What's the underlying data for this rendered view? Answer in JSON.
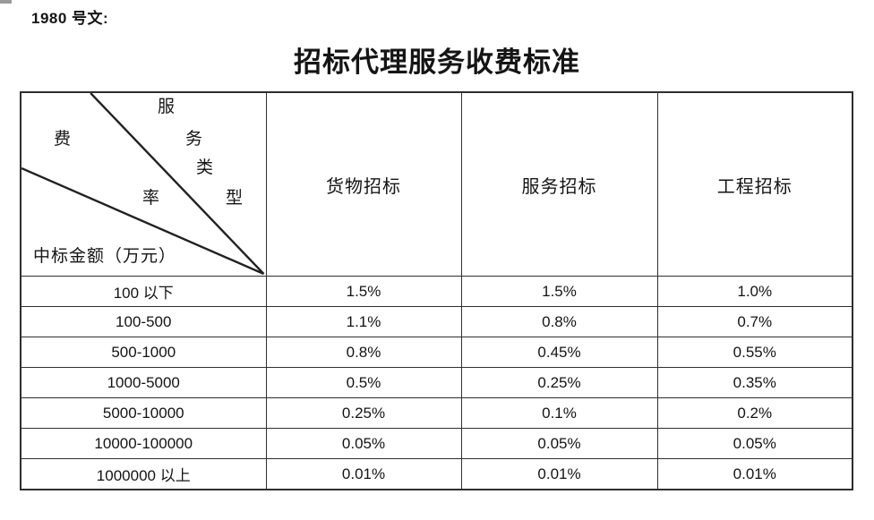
{
  "doc_ref": "1980 号文:",
  "title": "招标代理服务收费标准",
  "table": {
    "corner": {
      "fee_chars": [
        "费",
        "率"
      ],
      "type_chars": [
        "服",
        "务",
        "类",
        "型"
      ],
      "amount_label": "中标金额（万元）"
    },
    "columns": [
      "货物招标",
      "服务招标",
      "工程招标"
    ],
    "rows": [
      {
        "label": "100 以下",
        "values": [
          "1.5%",
          "1.5%",
          "1.0%"
        ]
      },
      {
        "label": "100-500",
        "values": [
          "1.1%",
          "0.8%",
          "0.7%"
        ]
      },
      {
        "label": "500-1000",
        "values": [
          "0.8%",
          "0.45%",
          "0.55%"
        ]
      },
      {
        "label": "1000-5000",
        "values": [
          "0.5%",
          "0.25%",
          "0.35%"
        ]
      },
      {
        "label": "5000-10000",
        "values": [
          "0.25%",
          "0.1%",
          "0.2%"
        ]
      },
      {
        "label": "10000-100000",
        "values": [
          "0.05%",
          "0.05%",
          "0.05%"
        ]
      },
      {
        "label": "1000000 以上",
        "values": [
          "0.01%",
          "0.01%",
          "0.01%"
        ]
      }
    ]
  },
  "colors": {
    "border": "#2e2e2e",
    "text": "#151515",
    "background": "#ffffff"
  }
}
